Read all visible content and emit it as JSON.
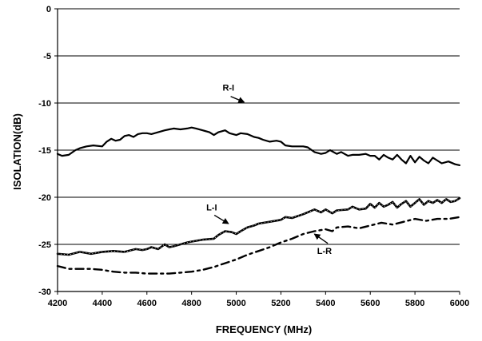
{
  "chart_data": {
    "type": "line",
    "title": "",
    "xlabel": "FREQUENCY (MHz)",
    "ylabel": "ISOLATION(dB)",
    "xlim": [
      4200,
      6000
    ],
    "ylim": [
      -30,
      0
    ],
    "x_ticks": [
      "4200",
      "4400",
      "4600",
      "4800",
      "5000",
      "5200",
      "5400",
      "5600",
      "5800",
      "6000"
    ],
    "y_ticks": [
      "0",
      "-5",
      "-10",
      "-15",
      "-20",
      "-25",
      "-30"
    ],
    "grid": "horizontal",
    "legend": "none",
    "annotations": [
      {
        "text": "R-I",
        "series": "R-I"
      },
      {
        "text": "L-I",
        "series": "L-I"
      },
      {
        "text": "L-R",
        "series": "L-R"
      }
    ],
    "series": [
      {
        "name": "R-I",
        "style": "solid",
        "x": [
          4200,
          4220,
          4250,
          4280,
          4300,
          4330,
          4360,
          4400,
          4420,
          4440,
          4460,
          4480,
          4500,
          4520,
          4540,
          4560,
          4580,
          4600,
          4620,
          4650,
          4680,
          4700,
          4720,
          4750,
          4780,
          4800,
          4820,
          4850,
          4880,
          4900,
          4920,
          4950,
          4970,
          5000,
          5020,
          5050,
          5080,
          5100,
          5120,
          5150,
          5180,
          5200,
          5220,
          5250,
          5280,
          5300,
          5320,
          5350,
          5380,
          5400,
          5420,
          5450,
          5470,
          5500,
          5520,
          5550,
          5580,
          5600,
          5620,
          5640,
          5660,
          5680,
          5700,
          5720,
          5740,
          5760,
          5780,
          5800,
          5820,
          5840,
          5860,
          5880,
          5900,
          5920,
          5950,
          5980,
          6000
        ],
        "y": [
          -15.4,
          -15.6,
          -15.5,
          -15.0,
          -14.8,
          -14.6,
          -14.5,
          -14.6,
          -14.1,
          -13.8,
          -14.0,
          -13.9,
          -13.5,
          -13.4,
          -13.6,
          -13.3,
          -13.2,
          -13.2,
          -13.3,
          -13.1,
          -12.9,
          -12.8,
          -12.7,
          -12.8,
          -12.7,
          -12.6,
          -12.7,
          -12.9,
          -13.1,
          -13.4,
          -13.1,
          -12.9,
          -13.2,
          -13.4,
          -13.2,
          -13.3,
          -13.6,
          -13.7,
          -13.9,
          -14.1,
          -14.0,
          -14.1,
          -14.5,
          -14.6,
          -14.6,
          -14.6,
          -14.7,
          -15.2,
          -15.4,
          -15.3,
          -15.0,
          -15.4,
          -15.2,
          -15.6,
          -15.5,
          -15.5,
          -15.4,
          -15.6,
          -15.6,
          -16.0,
          -15.5,
          -15.8,
          -16.0,
          -15.5,
          -16.0,
          -16.4,
          -15.6,
          -16.3,
          -15.7,
          -16.1,
          -16.4,
          -15.8,
          -16.1,
          -16.4,
          -16.2,
          -16.5,
          -16.6
        ]
      },
      {
        "name": "L-I",
        "style": "dotted-solid",
        "x": [
          4200,
          4250,
          4300,
          4350,
          4400,
          4450,
          4500,
          4550,
          4580,
          4600,
          4620,
          4650,
          4680,
          4700,
          4720,
          4750,
          4780,
          4800,
          4850,
          4900,
          4920,
          4950,
          4980,
          5000,
          5020,
          5050,
          5080,
          5100,
          5150,
          5200,
          5220,
          5250,
          5300,
          5330,
          5350,
          5380,
          5400,
          5430,
          5450,
          5500,
          5520,
          5550,
          5580,
          5600,
          5620,
          5640,
          5660,
          5680,
          5700,
          5720,
          5740,
          5760,
          5780,
          5800,
          5820,
          5840,
          5860,
          5880,
          5900,
          5920,
          5940,
          5960,
          5980,
          6000
        ],
        "y": [
          -26.0,
          -26.1,
          -25.8,
          -26.0,
          -25.8,
          -25.7,
          -25.8,
          -25.5,
          -25.6,
          -25.5,
          -25.3,
          -25.5,
          -25.0,
          -25.3,
          -25.2,
          -25.0,
          -24.8,
          -24.7,
          -24.5,
          -24.4,
          -24.0,
          -23.6,
          -23.7,
          -23.9,
          -23.6,
          -23.2,
          -23.0,
          -22.8,
          -22.6,
          -22.4,
          -22.1,
          -22.2,
          -21.8,
          -21.5,
          -21.3,
          -21.6,
          -21.3,
          -21.7,
          -21.4,
          -21.3,
          -21.0,
          -21.3,
          -21.2,
          -20.7,
          -21.1,
          -20.6,
          -21.0,
          -20.8,
          -20.5,
          -21.1,
          -20.7,
          -20.4,
          -21.0,
          -20.6,
          -20.2,
          -20.8,
          -20.4,
          -20.6,
          -20.3,
          -20.6,
          -20.2,
          -20.5,
          -20.4,
          -20.1
        ]
      },
      {
        "name": "L-R",
        "style": "dash-dot",
        "x": [
          4200,
          4250,
          4300,
          4350,
          4400,
          4450,
          4500,
          4550,
          4600,
          4650,
          4700,
          4750,
          4800,
          4850,
          4900,
          4950,
          5000,
          5050,
          5100,
          5150,
          5200,
          5250,
          5300,
          5350,
          5400,
          5430,
          5450,
          5500,
          5550,
          5600,
          5650,
          5700,
          5750,
          5800,
          5850,
          5900,
          5950,
          6000
        ],
        "y": [
          -27.3,
          -27.6,
          -27.6,
          -27.6,
          -27.7,
          -27.9,
          -28.0,
          -28.0,
          -28.1,
          -28.1,
          -28.1,
          -28.0,
          -27.9,
          -27.7,
          -27.4,
          -27.0,
          -26.6,
          -26.1,
          -25.7,
          -25.3,
          -24.8,
          -24.4,
          -23.9,
          -23.6,
          -23.4,
          -23.6,
          -23.2,
          -23.1,
          -23.3,
          -23.0,
          -22.7,
          -22.9,
          -22.6,
          -22.3,
          -22.5,
          -22.3,
          -22.3,
          -22.1
        ]
      }
    ]
  }
}
